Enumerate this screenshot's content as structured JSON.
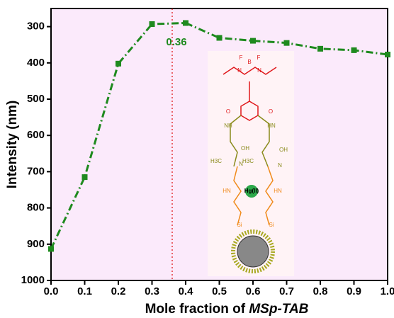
{
  "chart_data": {
    "type": "line",
    "xlabel": [
      "Mole fraction of ",
      "MSp-TAB"
    ],
    "ylabel": "Intensity (nm)",
    "x": [
      0,
      0.1,
      0.2,
      0.3,
      0.4,
      0.5,
      0.6,
      0.7,
      0.8,
      0.9,
      1.0
    ],
    "series": [
      {
        "color": "#1e8a1e",
        "values": [
          913,
          715,
          402,
          293,
          290,
          331,
          339,
          345,
          361,
          365,
          377
        ]
      }
    ],
    "xlim": [
      0,
      1
    ],
    "ylim": [
      250,
      1000
    ],
    "y_inverted": true,
    "xticks": [
      {
        "value": 0,
        "label": "0.0"
      },
      {
        "value": 0.1,
        "label": "0.1"
      },
      {
        "value": 0.2,
        "label": "0.2"
      },
      {
        "value": 0.3,
        "label": "0.3"
      },
      {
        "value": 0.4,
        "label": "0.4"
      },
      {
        "value": 0.5,
        "label": "0.5"
      },
      {
        "value": 0.6,
        "label": "0.6"
      },
      {
        "value": 0.7,
        "label": "0.7"
      },
      {
        "value": 0.8,
        "label": "0.8"
      },
      {
        "value": 0.9,
        "label": "0.9"
      },
      {
        "value": 1,
        "label": "1.0"
      }
    ],
    "yticks": [
      300,
      400,
      500,
      600,
      700,
      800,
      900,
      1000
    ],
    "annotation": {
      "x": 0.36,
      "label": "0.36",
      "color": "#e0181b"
    },
    "inset_labels": [
      "F",
      "B",
      "F",
      "N",
      "N",
      "O",
      "O",
      "NH",
      "HN",
      "OH",
      "OH",
      "H3C",
      "H3C",
      "N",
      "N",
      "HN",
      "HN",
      "Hg(II)",
      "Si",
      "Si"
    ]
  }
}
